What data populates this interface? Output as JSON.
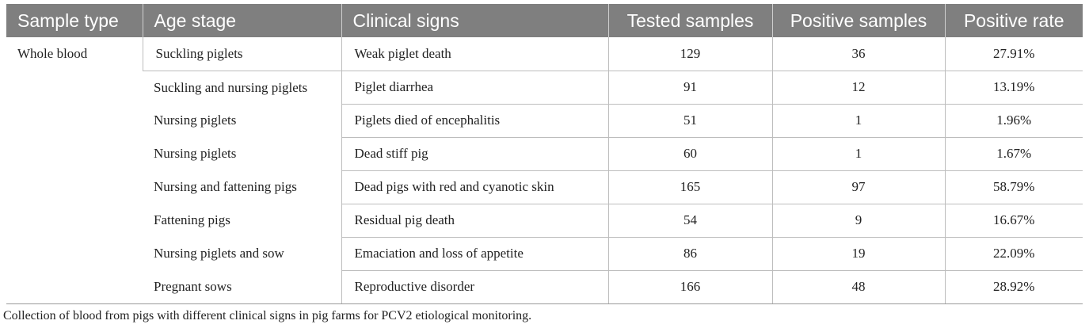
{
  "table": {
    "headers": [
      "Sample type",
      "Age stage",
      "Clinical signs",
      "Tested samples",
      "Positive samples",
      "Positive rate"
    ],
    "sample_type": "Whole blood",
    "rows": [
      {
        "age_stage": "Suckling piglets",
        "clinical_signs": "Weak piglet death",
        "tested": "129",
        "positive": "36",
        "rate": "27.91%"
      },
      {
        "age_stage": "Suckling and nursing piglets",
        "clinical_signs": "Piglet diarrhea",
        "tested": "91",
        "positive": "12",
        "rate": "13.19%"
      },
      {
        "age_stage": "Nursing piglets",
        "clinical_signs": "Piglets died of encephalitis",
        "tested": "51",
        "positive": "1",
        "rate": "1.96%"
      },
      {
        "age_stage": "Nursing piglets",
        "clinical_signs": "Dead stiff pig",
        "tested": "60",
        "positive": "1",
        "rate": "1.67%"
      },
      {
        "age_stage": "Nursing and fattening pigs",
        "clinical_signs": "Dead pigs with red and cyanotic skin",
        "tested": "165",
        "positive": "97",
        "rate": "58.79%"
      },
      {
        "age_stage": "Fattening pigs",
        "clinical_signs": "Residual pig death",
        "tested": "54",
        "positive": "9",
        "rate": "16.67%"
      },
      {
        "age_stage": "Nursing piglets and sow",
        "clinical_signs": "Emaciation and loss of appetite",
        "tested": "86",
        "positive": "19",
        "rate": "22.09%"
      },
      {
        "age_stage": "Pregnant sows",
        "clinical_signs": "Reproductive disorder",
        "tested": "166",
        "positive": "48",
        "rate": "28.92%"
      }
    ]
  },
  "caption": "Collection of blood from pigs with different clinical signs in pig farms for PCV2 etiological monitoring."
}
